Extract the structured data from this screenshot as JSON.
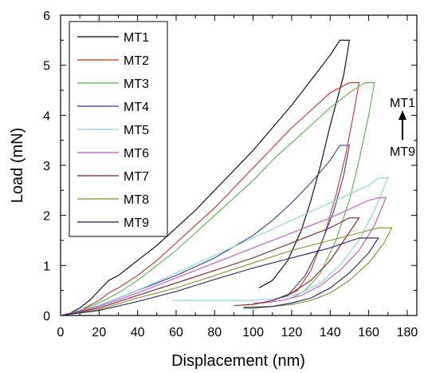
{
  "chart_data": {
    "type": "line",
    "xlabel": "Displacement (nm)",
    "ylabel": "Load (mN)",
    "xlim": [
      0,
      185
    ],
    "ylim": [
      0,
      6
    ],
    "xticks": [
      "0",
      "20",
      "40",
      "60",
      "80",
      "100",
      "120",
      "140",
      "160",
      "180"
    ],
    "yticks": [
      "0",
      "1",
      "2",
      "3",
      "4",
      "5",
      "6"
    ],
    "legend_position": "top-left",
    "grid": false,
    "annotation": {
      "top_label": "MT1",
      "bottom_label": "MT9",
      "arrow": "up"
    },
    "series": [
      {
        "name": "MT1",
        "color": "#000000",
        "loading": [
          [
            0,
            0
          ],
          [
            5,
            0.05
          ],
          [
            10,
            0.15
          ],
          [
            15,
            0.3
          ],
          [
            20,
            0.5
          ],
          [
            25,
            0.7
          ],
          [
            30,
            0.8
          ],
          [
            40,
            1.1
          ],
          [
            50,
            1.4
          ],
          [
            60,
            1.75
          ],
          [
            70,
            2.1
          ],
          [
            80,
            2.5
          ],
          [
            90,
            2.9
          ],
          [
            100,
            3.3
          ],
          [
            110,
            3.75
          ],
          [
            120,
            4.2
          ],
          [
            130,
            4.7
          ],
          [
            140,
            5.2
          ],
          [
            145,
            5.5
          ]
        ],
        "hold": [
          [
            145,
            5.5
          ],
          [
            150,
            5.5
          ]
        ],
        "unloading": [
          [
            150,
            5.5
          ],
          [
            147,
            4.8
          ],
          [
            140,
            3.8
          ],
          [
            135,
            3.0
          ],
          [
            130,
            2.3
          ],
          [
            125,
            1.7
          ],
          [
            118,
            1.1
          ],
          [
            110,
            0.7
          ],
          [
            103,
            0.55
          ]
        ]
      },
      {
        "name": "MT2",
        "color": "#e8251e",
        "loading": [
          [
            0,
            0
          ],
          [
            10,
            0.1
          ],
          [
            20,
            0.3
          ],
          [
            25,
            0.45
          ],
          [
            30,
            0.55
          ],
          [
            40,
            0.8
          ],
          [
            50,
            1.1
          ],
          [
            60,
            1.45
          ],
          [
            70,
            1.8
          ],
          [
            80,
            2.15
          ],
          [
            90,
            2.55
          ],
          [
            100,
            2.95
          ],
          [
            110,
            3.35
          ],
          [
            120,
            3.75
          ],
          [
            130,
            4.1
          ],
          [
            140,
            4.45
          ],
          [
            150,
            4.65
          ]
        ],
        "hold": [
          [
            150,
            4.65
          ],
          [
            155,
            4.65
          ]
        ],
        "unloading": [
          [
            155,
            4.65
          ],
          [
            152,
            4.0
          ],
          [
            148,
            3.2
          ],
          [
            143,
            2.4
          ],
          [
            137,
            1.6
          ],
          [
            130,
            0.9
          ],
          [
            123,
            0.5
          ],
          [
            115,
            0.35
          ]
        ]
      },
      {
        "name": "MT3",
        "color": "#4cbb3c",
        "loading": [
          [
            0,
            0
          ],
          [
            10,
            0.1
          ],
          [
            20,
            0.25
          ],
          [
            30,
            0.45
          ],
          [
            40,
            0.7
          ],
          [
            50,
            1.0
          ],
          [
            60,
            1.3
          ],
          [
            70,
            1.65
          ],
          [
            80,
            2.0
          ],
          [
            90,
            2.35
          ],
          [
            100,
            2.7
          ],
          [
            110,
            3.1
          ],
          [
            120,
            3.45
          ],
          [
            130,
            3.8
          ],
          [
            140,
            4.15
          ],
          [
            150,
            4.45
          ],
          [
            158,
            4.65
          ]
        ],
        "hold": [
          [
            158,
            4.65
          ],
          [
            163,
            4.65
          ]
        ],
        "unloading": [
          [
            163,
            4.65
          ],
          [
            160,
            4.0
          ],
          [
            155,
            3.1
          ],
          [
            150,
            2.3
          ],
          [
            143,
            1.5
          ],
          [
            135,
            0.85
          ],
          [
            127,
            0.5
          ],
          [
            120,
            0.35
          ]
        ]
      },
      {
        "name": "MT4",
        "color": "#2a3fa6",
        "loading": [
          [
            0,
            0
          ],
          [
            20,
            0.2
          ],
          [
            40,
            0.5
          ],
          [
            60,
            0.8
          ],
          [
            80,
            1.15
          ],
          [
            100,
            1.6
          ],
          [
            110,
            1.9
          ],
          [
            120,
            2.25
          ],
          [
            130,
            2.65
          ],
          [
            140,
            3.1
          ],
          [
            145,
            3.4
          ]
        ],
        "hold": [
          [
            145,
            3.4
          ],
          [
            150,
            3.4
          ]
        ],
        "unloading": [
          [
            150,
            3.4
          ],
          [
            147,
            2.8
          ],
          [
            142,
            2.1
          ],
          [
            135,
            1.4
          ],
          [
            127,
            0.8
          ],
          [
            118,
            0.4
          ],
          [
            110,
            0.3
          ]
        ]
      },
      {
        "name": "MT5",
        "color": "#7fd6d6",
        "loading": [
          [
            0,
            0
          ],
          [
            20,
            0.2
          ],
          [
            40,
            0.5
          ],
          [
            60,
            0.85
          ],
          [
            80,
            1.2
          ],
          [
            100,
            1.55
          ],
          [
            120,
            1.9
          ],
          [
            140,
            2.25
          ],
          [
            160,
            2.6
          ],
          [
            165,
            2.75
          ]
        ],
        "hold": [
          [
            165,
            2.75
          ],
          [
            170,
            2.75
          ]
        ],
        "unloading": [
          [
            170,
            2.75
          ],
          [
            163,
            2.1
          ],
          [
            155,
            1.5
          ],
          [
            145,
            1.0
          ],
          [
            135,
            0.65
          ],
          [
            125,
            0.45
          ],
          [
            115,
            0.35
          ],
          [
            100,
            0.3
          ],
          [
            80,
            0.3
          ],
          [
            58,
            0.3
          ]
        ]
      },
      {
        "name": "MT6",
        "color": "#c74fd0",
        "loading": [
          [
            0,
            0
          ],
          [
            20,
            0.18
          ],
          [
            40,
            0.45
          ],
          [
            60,
            0.75
          ],
          [
            80,
            1.05
          ],
          [
            100,
            1.35
          ],
          [
            120,
            1.65
          ],
          [
            140,
            1.95
          ],
          [
            160,
            2.3
          ],
          [
            165,
            2.35
          ]
        ],
        "hold": [
          [
            165,
            2.35
          ],
          [
            169,
            2.35
          ]
        ],
        "unloading": [
          [
            169,
            2.35
          ],
          [
            163,
            1.8
          ],
          [
            155,
            1.3
          ],
          [
            145,
            0.9
          ],
          [
            135,
            0.6
          ],
          [
            125,
            0.4
          ],
          [
            115,
            0.3
          ],
          [
            105,
            0.25
          ],
          [
            100,
            0.25
          ]
        ]
      },
      {
        "name": "MT7",
        "color": "#8b1a1a",
        "loading": [
          [
            0,
            0
          ],
          [
            20,
            0.15
          ],
          [
            40,
            0.4
          ],
          [
            60,
            0.65
          ],
          [
            80,
            0.9
          ],
          [
            100,
            1.15
          ],
          [
            120,
            1.45
          ],
          [
            140,
            1.75
          ],
          [
            150,
            1.95
          ]
        ],
        "hold": [
          [
            150,
            1.95
          ],
          [
            155,
            1.95
          ]
        ],
        "unloading": [
          [
            155,
            1.95
          ],
          [
            148,
            1.55
          ],
          [
            140,
            1.1
          ],
          [
            130,
            0.7
          ],
          [
            120,
            0.45
          ],
          [
            110,
            0.3
          ],
          [
            100,
            0.22
          ],
          [
            90,
            0.2
          ]
        ]
      },
      {
        "name": "MT8",
        "color": "#8b8b1a",
        "loading": [
          [
            0,
            0
          ],
          [
            20,
            0.12
          ],
          [
            40,
            0.35
          ],
          [
            60,
            0.55
          ],
          [
            80,
            0.8
          ],
          [
            100,
            1.05
          ],
          [
            120,
            1.3
          ],
          [
            140,
            1.5
          ],
          [
            160,
            1.7
          ],
          [
            165,
            1.75
          ]
        ],
        "hold": [
          [
            165,
            1.75
          ],
          [
            172,
            1.75
          ]
        ],
        "unloading": [
          [
            172,
            1.75
          ],
          [
            168,
            1.45
          ],
          [
            160,
            1.05
          ],
          [
            150,
            0.7
          ],
          [
            140,
            0.45
          ],
          [
            130,
            0.3
          ],
          [
            120,
            0.22
          ],
          [
            110,
            0.18
          ],
          [
            95,
            0.17
          ]
        ]
      },
      {
        "name": "MT9",
        "color": "#1a1a6e",
        "loading": [
          [
            0,
            0
          ],
          [
            20,
            0.1
          ],
          [
            40,
            0.28
          ],
          [
            60,
            0.48
          ],
          [
            80,
            0.72
          ],
          [
            100,
            0.95
          ],
          [
            120,
            1.15
          ],
          [
            140,
            1.35
          ],
          [
            155,
            1.55
          ]
        ],
        "hold": [
          [
            155,
            1.55
          ],
          [
            165,
            1.55
          ]
        ],
        "unloading": [
          [
            165,
            1.55
          ],
          [
            160,
            1.25
          ],
          [
            150,
            0.85
          ],
          [
            140,
            0.55
          ],
          [
            130,
            0.35
          ],
          [
            120,
            0.25
          ],
          [
            110,
            0.18
          ],
          [
            100,
            0.15
          ],
          [
            95,
            0.15
          ]
        ]
      }
    ]
  }
}
